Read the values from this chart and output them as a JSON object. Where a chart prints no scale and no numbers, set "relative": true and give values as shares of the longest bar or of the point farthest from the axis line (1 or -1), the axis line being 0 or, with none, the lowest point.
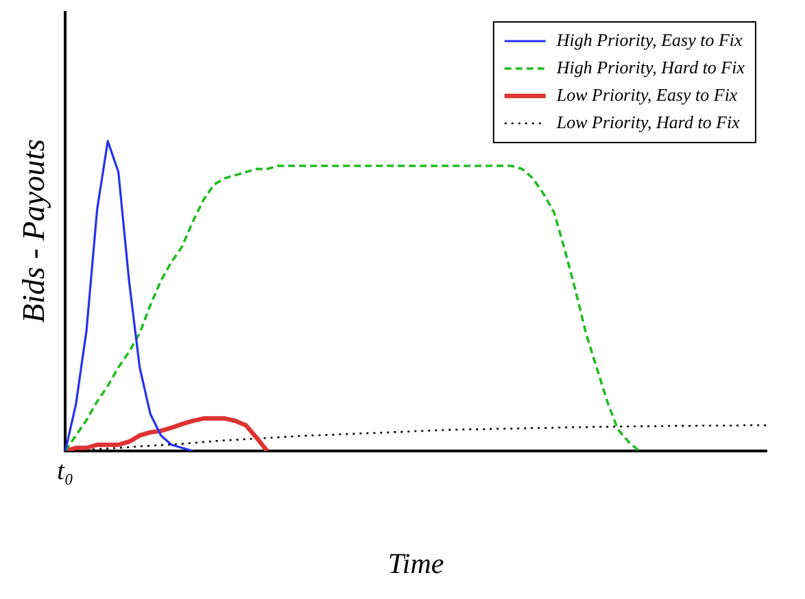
{
  "chart_data": {
    "type": "line",
    "relative": true,
    "xlabel": "Time",
    "ylabel": "Bids - Payouts",
    "legend": "top right",
    "grid": false,
    "marker": "none",
    "annotations": [
      "t₀"
    ],
    "categories": [
      null,
      null,
      null,
      null,
      null,
      null,
      null,
      null,
      null,
      null,
      null,
      null,
      null,
      null,
      null,
      null,
      null,
      null,
      null,
      null,
      null,
      null,
      null,
      null,
      null,
      null,
      null,
      null,
      null,
      null,
      null,
      null,
      null,
      null,
      null,
      null,
      null,
      null,
      null,
      null,
      null,
      null,
      null,
      null,
      null,
      null,
      null,
      null,
      null,
      null,
      null,
      null,
      null,
      null,
      null,
      null,
      null,
      null,
      null,
      null,
      null,
      null,
      null,
      null,
      null,
      null,
      null
    ],
    "series": [
      {
        "name": "High Priority, Easy to Fix",
        "color": "#2233ee",
        "line_style": "solid",
        "values": [
          0,
          0.15,
          0.39,
          0.78,
          1,
          0.9,
          0.55,
          0.27,
          0.12,
          0.05,
          0.02,
          0.01,
          0,
          null,
          null,
          null,
          null,
          null,
          null,
          null,
          null,
          null,
          null,
          null,
          null,
          null,
          null,
          null,
          null,
          null,
          null,
          null,
          null,
          null,
          null,
          null,
          null,
          null,
          null,
          null,
          null,
          null,
          null,
          null,
          null,
          null,
          null,
          null,
          null,
          null,
          null,
          null,
          null,
          null,
          null,
          null,
          null,
          null,
          null,
          null,
          null,
          null,
          null,
          null,
          null,
          null,
          null
        ]
      },
      {
        "name": "High Priority, Hard to Fix",
        "color": "#22bb22",
        "line_style": "dashed",
        "values": [
          0,
          0.05,
          0.1,
          0.16,
          0.21,
          0.27,
          0.32,
          0.38,
          0.47,
          0.55,
          0.61,
          0.66,
          0.74,
          0.81,
          0.86,
          0.88,
          0.89,
          0.9,
          0.91,
          0.91,
          0.92,
          0.92,
          0.92,
          0.92,
          0.92,
          0.92,
          0.92,
          0.92,
          0.92,
          0.92,
          0.92,
          0.92,
          0.92,
          0.92,
          0.92,
          0.92,
          0.92,
          0.92,
          0.92,
          0.92,
          0.92,
          0.92,
          0.92,
          0.91,
          0.88,
          0.83,
          0.77,
          0.65,
          0.52,
          0.38,
          0.27,
          0.16,
          0.07,
          0.03,
          0,
          null,
          null,
          null,
          null,
          null,
          null,
          null,
          null,
          null,
          null,
          null,
          null
        ]
      },
      {
        "name": "Low Priority, Easy to Fix",
        "color": "#dd3333",
        "line_style": "solid",
        "values": [
          0,
          0.01,
          0.01,
          0.02,
          0.02,
          0.02,
          0.03,
          0.05,
          0.06,
          0.065,
          0.075,
          0.087,
          0.097,
          0.105,
          0.105,
          0.105,
          0.097,
          0.083,
          0.043,
          0,
          null,
          null,
          null,
          null,
          null,
          null,
          null,
          null,
          null,
          null,
          null,
          null,
          null,
          null,
          null,
          null,
          null,
          null,
          null,
          null,
          null,
          null,
          null,
          null,
          null,
          null,
          null,
          null,
          null,
          null,
          null,
          null,
          null,
          null,
          null,
          null,
          null,
          null,
          null,
          null,
          null,
          null,
          null,
          null,
          null,
          null,
          null
        ]
      },
      {
        "name": "Low Priority, Hard to Fix",
        "color": "#000000",
        "line_style": "dotted",
        "values": [
          0,
          0.002,
          0.004,
          0.006,
          0.008,
          0.01,
          0.012,
          0.015,
          0.017,
          0.019,
          0.021,
          0.023,
          0.026,
          0.029,
          0.032,
          0.034,
          0.036,
          0.038,
          0.04,
          0.042,
          0.044,
          0.046,
          0.048,
          0.05,
          0.051,
          0.052,
          0.054,
          0.055,
          0.057,
          0.058,
          0.059,
          0.061,
          0.062,
          0.064,
          0.065,
          0.067,
          0.068,
          0.069,
          0.07,
          0.07,
          0.071,
          0.072,
          0.072,
          0.073,
          0.074,
          0.074,
          0.075,
          0.076,
          0.077,
          0.077,
          0.078,
          0.078,
          0.079,
          0.079,
          0.08,
          0.08,
          0.08,
          0.081,
          0.081,
          0.081,
          0.082,
          0.082,
          0.082,
          0.082,
          0.083,
          0.083,
          0.083
        ]
      }
    ]
  }
}
